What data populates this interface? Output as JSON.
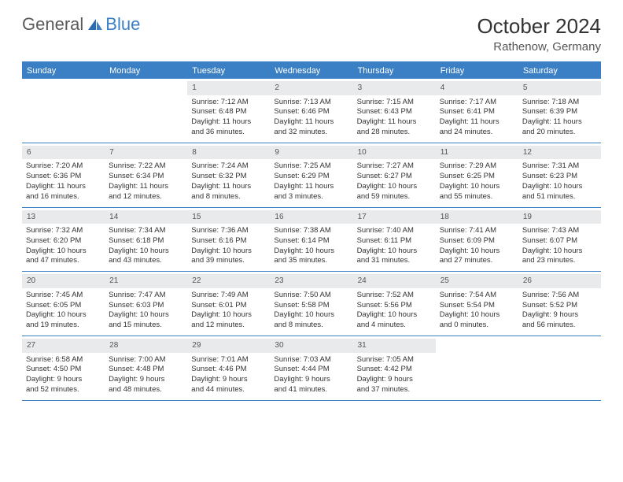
{
  "colors": {
    "brand_blue": "#3b7fc4",
    "header_bg": "#3b7fc4",
    "daynum_bg": "#e8eaec",
    "text": "#333333",
    "text_muted": "#555555",
    "page_bg": "#ffffff"
  },
  "logo": {
    "general": "General",
    "blue": "Blue"
  },
  "title": "October 2024",
  "location": "Rathenow, Germany",
  "day_headers": [
    "Sunday",
    "Monday",
    "Tuesday",
    "Wednesday",
    "Thursday",
    "Friday",
    "Saturday"
  ],
  "weeks": [
    [
      {
        "blank": true
      },
      {
        "blank": true
      },
      {
        "n": "1",
        "sr": "Sunrise: 7:12 AM",
        "ss": "Sunset: 6:48 PM",
        "d1": "Daylight: 11 hours",
        "d2": "and 36 minutes."
      },
      {
        "n": "2",
        "sr": "Sunrise: 7:13 AM",
        "ss": "Sunset: 6:46 PM",
        "d1": "Daylight: 11 hours",
        "d2": "and 32 minutes."
      },
      {
        "n": "3",
        "sr": "Sunrise: 7:15 AM",
        "ss": "Sunset: 6:43 PM",
        "d1": "Daylight: 11 hours",
        "d2": "and 28 minutes."
      },
      {
        "n": "4",
        "sr": "Sunrise: 7:17 AM",
        "ss": "Sunset: 6:41 PM",
        "d1": "Daylight: 11 hours",
        "d2": "and 24 minutes."
      },
      {
        "n": "5",
        "sr": "Sunrise: 7:18 AM",
        "ss": "Sunset: 6:39 PM",
        "d1": "Daylight: 11 hours",
        "d2": "and 20 minutes."
      }
    ],
    [
      {
        "n": "6",
        "sr": "Sunrise: 7:20 AM",
        "ss": "Sunset: 6:36 PM",
        "d1": "Daylight: 11 hours",
        "d2": "and 16 minutes."
      },
      {
        "n": "7",
        "sr": "Sunrise: 7:22 AM",
        "ss": "Sunset: 6:34 PM",
        "d1": "Daylight: 11 hours",
        "d2": "and 12 minutes."
      },
      {
        "n": "8",
        "sr": "Sunrise: 7:24 AM",
        "ss": "Sunset: 6:32 PM",
        "d1": "Daylight: 11 hours",
        "d2": "and 8 minutes."
      },
      {
        "n": "9",
        "sr": "Sunrise: 7:25 AM",
        "ss": "Sunset: 6:29 PM",
        "d1": "Daylight: 11 hours",
        "d2": "and 3 minutes."
      },
      {
        "n": "10",
        "sr": "Sunrise: 7:27 AM",
        "ss": "Sunset: 6:27 PM",
        "d1": "Daylight: 10 hours",
        "d2": "and 59 minutes."
      },
      {
        "n": "11",
        "sr": "Sunrise: 7:29 AM",
        "ss": "Sunset: 6:25 PM",
        "d1": "Daylight: 10 hours",
        "d2": "and 55 minutes."
      },
      {
        "n": "12",
        "sr": "Sunrise: 7:31 AM",
        "ss": "Sunset: 6:23 PM",
        "d1": "Daylight: 10 hours",
        "d2": "and 51 minutes."
      }
    ],
    [
      {
        "n": "13",
        "sr": "Sunrise: 7:32 AM",
        "ss": "Sunset: 6:20 PM",
        "d1": "Daylight: 10 hours",
        "d2": "and 47 minutes."
      },
      {
        "n": "14",
        "sr": "Sunrise: 7:34 AM",
        "ss": "Sunset: 6:18 PM",
        "d1": "Daylight: 10 hours",
        "d2": "and 43 minutes."
      },
      {
        "n": "15",
        "sr": "Sunrise: 7:36 AM",
        "ss": "Sunset: 6:16 PM",
        "d1": "Daylight: 10 hours",
        "d2": "and 39 minutes."
      },
      {
        "n": "16",
        "sr": "Sunrise: 7:38 AM",
        "ss": "Sunset: 6:14 PM",
        "d1": "Daylight: 10 hours",
        "d2": "and 35 minutes."
      },
      {
        "n": "17",
        "sr": "Sunrise: 7:40 AM",
        "ss": "Sunset: 6:11 PM",
        "d1": "Daylight: 10 hours",
        "d2": "and 31 minutes."
      },
      {
        "n": "18",
        "sr": "Sunrise: 7:41 AM",
        "ss": "Sunset: 6:09 PM",
        "d1": "Daylight: 10 hours",
        "d2": "and 27 minutes."
      },
      {
        "n": "19",
        "sr": "Sunrise: 7:43 AM",
        "ss": "Sunset: 6:07 PM",
        "d1": "Daylight: 10 hours",
        "d2": "and 23 minutes."
      }
    ],
    [
      {
        "n": "20",
        "sr": "Sunrise: 7:45 AM",
        "ss": "Sunset: 6:05 PM",
        "d1": "Daylight: 10 hours",
        "d2": "and 19 minutes."
      },
      {
        "n": "21",
        "sr": "Sunrise: 7:47 AM",
        "ss": "Sunset: 6:03 PM",
        "d1": "Daylight: 10 hours",
        "d2": "and 15 minutes."
      },
      {
        "n": "22",
        "sr": "Sunrise: 7:49 AM",
        "ss": "Sunset: 6:01 PM",
        "d1": "Daylight: 10 hours",
        "d2": "and 12 minutes."
      },
      {
        "n": "23",
        "sr": "Sunrise: 7:50 AM",
        "ss": "Sunset: 5:58 PM",
        "d1": "Daylight: 10 hours",
        "d2": "and 8 minutes."
      },
      {
        "n": "24",
        "sr": "Sunrise: 7:52 AM",
        "ss": "Sunset: 5:56 PM",
        "d1": "Daylight: 10 hours",
        "d2": "and 4 minutes."
      },
      {
        "n": "25",
        "sr": "Sunrise: 7:54 AM",
        "ss": "Sunset: 5:54 PM",
        "d1": "Daylight: 10 hours",
        "d2": "and 0 minutes."
      },
      {
        "n": "26",
        "sr": "Sunrise: 7:56 AM",
        "ss": "Sunset: 5:52 PM",
        "d1": "Daylight: 9 hours",
        "d2": "and 56 minutes."
      }
    ],
    [
      {
        "n": "27",
        "sr": "Sunrise: 6:58 AM",
        "ss": "Sunset: 4:50 PM",
        "d1": "Daylight: 9 hours",
        "d2": "and 52 minutes."
      },
      {
        "n": "28",
        "sr": "Sunrise: 7:00 AM",
        "ss": "Sunset: 4:48 PM",
        "d1": "Daylight: 9 hours",
        "d2": "and 48 minutes."
      },
      {
        "n": "29",
        "sr": "Sunrise: 7:01 AM",
        "ss": "Sunset: 4:46 PM",
        "d1": "Daylight: 9 hours",
        "d2": "and 44 minutes."
      },
      {
        "n": "30",
        "sr": "Sunrise: 7:03 AM",
        "ss": "Sunset: 4:44 PM",
        "d1": "Daylight: 9 hours",
        "d2": "and 41 minutes."
      },
      {
        "n": "31",
        "sr": "Sunrise: 7:05 AM",
        "ss": "Sunset: 4:42 PM",
        "d1": "Daylight: 9 hours",
        "d2": "and 37 minutes."
      },
      {
        "blank": true
      },
      {
        "blank": true
      }
    ]
  ]
}
